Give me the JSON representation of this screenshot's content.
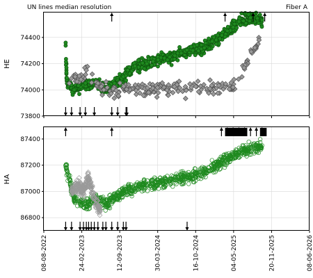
{
  "title_left": "UN lines median resolution",
  "title_right": "Fiber A",
  "colors": {
    "green": "#1f8a1f",
    "green_dark": "#0b4d0b",
    "gray": "#9a9a9a",
    "gray_dark": "#505050"
  },
  "chart_data": [
    {
      "type": "scatter",
      "ylabel": "HE",
      "x_axis": "date",
      "ylim": [
        73800,
        74590
      ],
      "yticks": [
        73800,
        74000,
        74200,
        74400
      ],
      "grid": true,
      "series": [
        {
          "marker": "filled-circle",
          "color": "green",
          "points": [
            [
              "2022-12-01",
              74360
            ],
            [
              "2022-12-08",
              74050
            ],
            [
              "2023-01-15",
              74000
            ],
            [
              "2023-03-15",
              74050
            ],
            [
              "2023-05-15",
              74050
            ],
            [
              "2023-07-01",
              74000
            ],
            [
              "2023-08-15",
              74050
            ],
            [
              "2023-10-01",
              74100
            ],
            [
              "2023-12-01",
              74180
            ],
            [
              "2024-02-01",
              74200
            ],
            [
              "2024-04-01",
              74230
            ],
            [
              "2024-06-01",
              74250
            ],
            [
              "2024-08-01",
              74280
            ],
            [
              "2024-10-01",
              74300
            ],
            [
              "2024-12-01",
              74320
            ],
            [
              "2025-02-01",
              74380
            ],
            [
              "2025-04-01",
              74450
            ],
            [
              "2025-06-01",
              74520
            ],
            [
              "2025-08-01",
              74550
            ],
            [
              "2025-10-01",
              74530
            ]
          ]
        },
        {
          "marker": "diamond",
          "color": "gray",
          "points": [
            [
              "2022-12-20",
              74050
            ],
            [
              "2023-01-20",
              74100
            ],
            [
              "2023-02-20",
              74080
            ],
            [
              "2023-03-20",
              74150
            ],
            [
              "2023-04-20",
              74120
            ],
            [
              "2023-05-20",
              74050
            ],
            [
              "2023-06-20",
              74000
            ],
            [
              "2025-05-01",
              74020
            ],
            [
              "2025-09-15",
              74380
            ]
          ]
        }
      ],
      "arrows_down": [
        "2022-12-01",
        "2023-01-01",
        "2023-02-15",
        "2023-03-15",
        "2023-05-01",
        "2023-08-01",
        "2023-09-01",
        "2023-10-15",
        "2023-10-20"
      ],
      "arrows_up": [
        "2023-08-01",
        "2025-03-20",
        "2025-08-15",
        "2025-10-15"
      ]
    },
    {
      "type": "scatter",
      "ylabel": "HA",
      "x_axis": "date",
      "ylim": [
        86700,
        87490
      ],
      "yticks": [
        86800,
        87000,
        87200,
        87400
      ],
      "xlim": [
        "2022-08-08",
        "2026-06-08"
      ],
      "xticks": [
        "08-08-2022",
        "24-02-2023",
        "12-09-2023",
        "30-03-2024",
        "16-10-2024",
        "04-05-2025",
        "20-11-2025",
        "08-06-2026"
      ],
      "grid": true,
      "series": [
        {
          "marker": "open-circle",
          "color": "green",
          "points": [
            [
              "2022-12-01",
              87200
            ],
            [
              "2023-01-15",
              86950
            ],
            [
              "2023-03-15",
              86900
            ],
            [
              "2023-05-15",
              86950
            ],
            [
              "2023-07-01",
              86900
            ],
            [
              "2023-08-15",
              86950
            ],
            [
              "2023-10-01",
              87000
            ],
            [
              "2023-12-01",
              87020
            ],
            [
              "2024-02-01",
              87050
            ],
            [
              "2024-04-01",
              87070
            ],
            [
              "2024-06-01",
              87080
            ],
            [
              "2024-08-01",
              87100
            ],
            [
              "2024-10-01",
              87120
            ],
            [
              "2024-12-01",
              87150
            ],
            [
              "2025-02-01",
              87200
            ],
            [
              "2025-04-01",
              87250
            ],
            [
              "2025-06-01",
              87300
            ],
            [
              "2025-10-01",
              87350
            ]
          ]
        },
        {
          "marker": "open-diamond",
          "color": "gray",
          "points": [
            [
              "2023-01-01",
              87000
            ],
            [
              "2023-02-01",
              87050
            ],
            [
              "2023-03-01",
              87000
            ],
            [
              "2023-04-01",
              87100
            ],
            [
              "2023-05-01",
              86950
            ],
            [
              "2023-06-01",
              86850
            ]
          ]
        }
      ],
      "arrows_down": [
        "2022-12-01",
        "2023-01-01",
        "2023-02-15",
        "2023-03-05",
        "2023-03-20",
        "2023-04-01",
        "2023-04-15",
        "2023-05-01",
        "2023-05-20",
        "2023-06-15",
        "2023-07-01",
        "2023-08-01",
        "2023-09-01",
        "2023-10-01",
        "2023-10-15",
        "2024-09-01"
      ],
      "arrows_up": [
        "2022-12-01",
        "2023-08-01",
        "2025-03-01",
        "2025-04-01",
        "2025-05-01",
        "2025-06-01",
        "2025-07-01",
        "2025-08-01",
        "2025-09-01",
        "2025-10-01"
      ]
    }
  ]
}
